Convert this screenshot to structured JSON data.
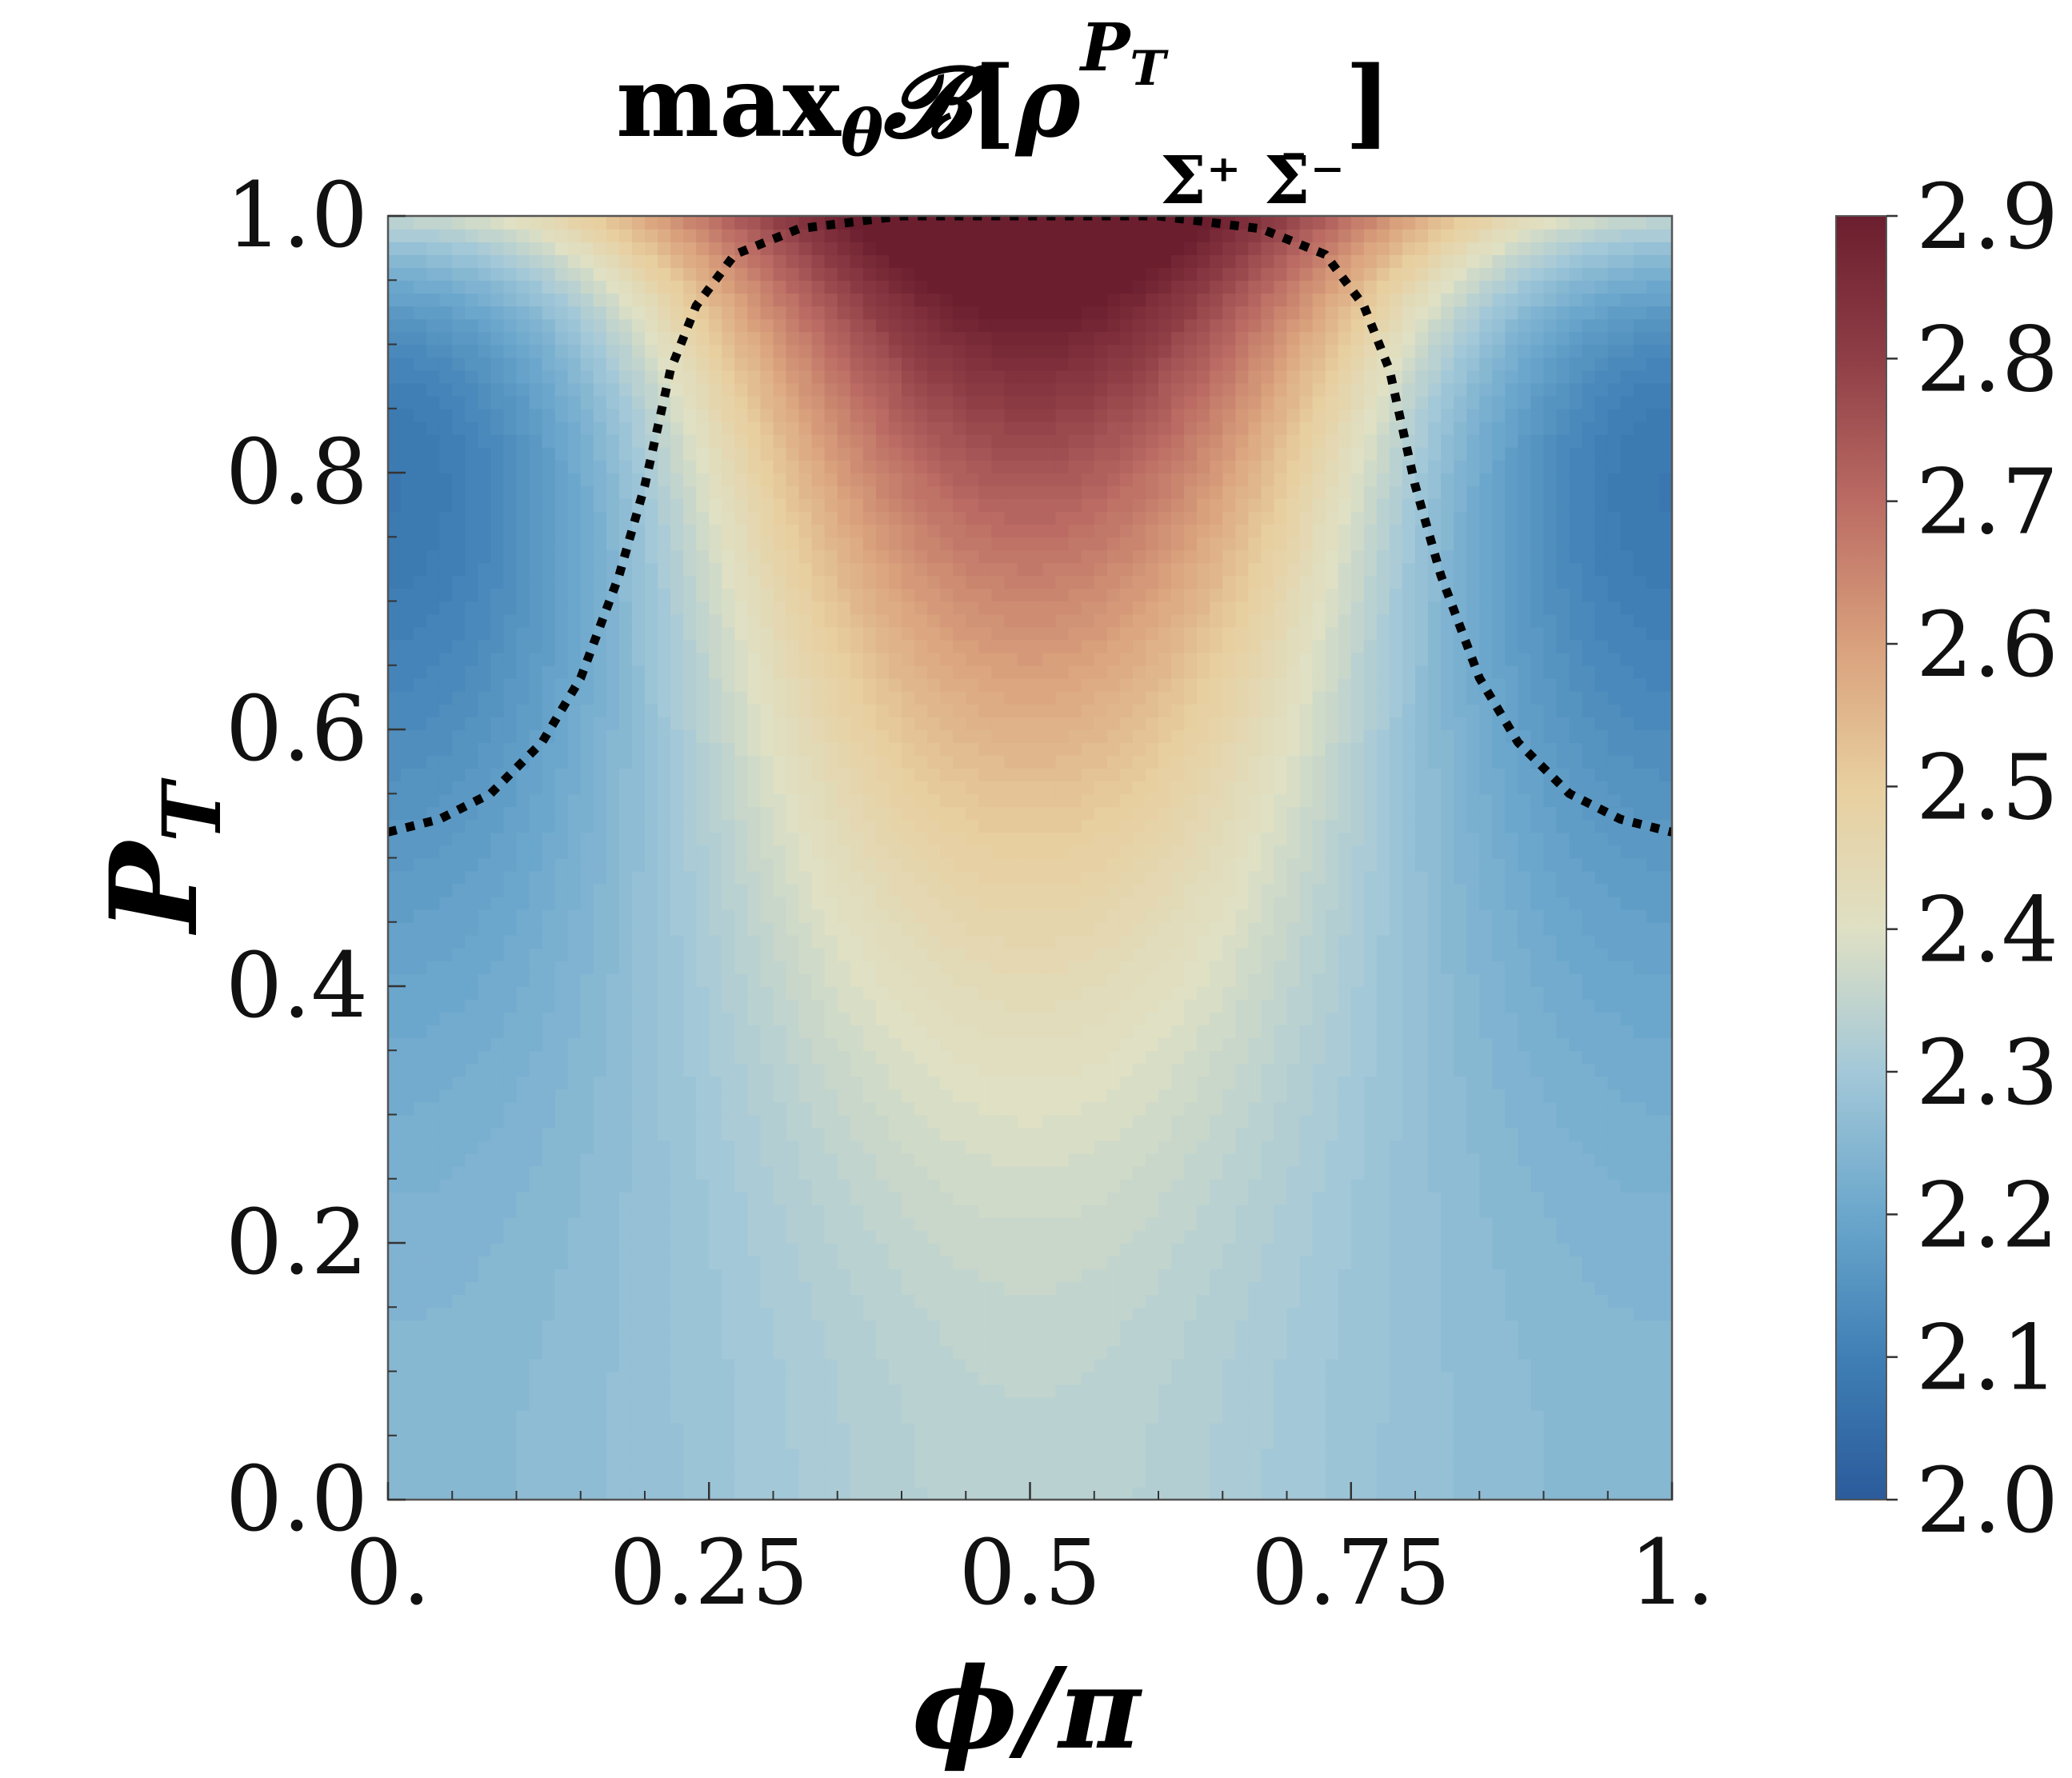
{
  "chart_data": {
    "type": "heatmap",
    "title": {
      "prefix": "max",
      "prefix_sub": "θ",
      "symbol": "𝓑",
      "open": "[",
      "rho": "ρ",
      "superscript": "P",
      "superscript_sub": "T",
      "subscript": "Σ⁺ Σ̄⁻",
      "close": "]"
    },
    "xlabel": "ϕ/π",
    "ylabel": {
      "main": "P",
      "sub": "T"
    },
    "x_range": [
      0,
      1
    ],
    "y_range": [
      0,
      1
    ],
    "x_ticks": [
      {
        "value": 0,
        "label": "0."
      },
      {
        "value": 0.25,
        "label": "0.25"
      },
      {
        "value": 0.5,
        "label": "0.5"
      },
      {
        "value": 0.75,
        "label": "0.75"
      },
      {
        "value": 1,
        "label": "1."
      }
    ],
    "y_ticks": [
      {
        "value": 0,
        "label": "0.0"
      },
      {
        "value": 0.2,
        "label": "0.2"
      },
      {
        "value": 0.4,
        "label": "0.4"
      },
      {
        "value": 0.6,
        "label": "0.6"
      },
      {
        "value": 0.8,
        "label": "0.8"
      },
      {
        "value": 1,
        "label": "1.0"
      }
    ],
    "colorbar": {
      "range": [
        2.0,
        2.9
      ],
      "ticks": [
        {
          "value": 2.0,
          "label": "2.0"
        },
        {
          "value": 2.1,
          "label": "2.1"
        },
        {
          "value": 2.2,
          "label": "2.2"
        },
        {
          "value": 2.3,
          "label": "2.3"
        },
        {
          "value": 2.4,
          "label": "2.4"
        },
        {
          "value": 2.5,
          "label": "2.5"
        },
        {
          "value": 2.6,
          "label": "2.6"
        },
        {
          "value": 2.7,
          "label": "2.7"
        },
        {
          "value": 2.8,
          "label": "2.8"
        },
        {
          "value": 2.9,
          "label": "2.9"
        }
      ],
      "colors": [
        "#2b5b9b",
        "#3f7fb5",
        "#6ba7cc",
        "#a3c8d8",
        "#dfe0c4",
        "#e8cf9f",
        "#d9a07c",
        "#bb6b63",
        "#8f3e46",
        "#6b1e2e"
      ]
    },
    "contour_level_2sqrt2": {
      "value": 2.828,
      "style": "dotted",
      "color": "#000000",
      "points": [
        [
          0.0,
          0.52
        ],
        [
          0.04,
          0.53
        ],
        [
          0.08,
          0.55
        ],
        [
          0.12,
          0.59
        ],
        [
          0.15,
          0.64
        ],
        [
          0.18,
          0.72
        ],
        [
          0.2,
          0.79
        ],
        [
          0.22,
          0.88
        ],
        [
          0.24,
          0.93
        ],
        [
          0.27,
          0.97
        ],
        [
          0.32,
          0.99
        ],
        [
          0.4,
          1.0
        ],
        [
          0.5,
          1.0
        ],
        [
          0.6,
          1.0
        ],
        [
          0.68,
          0.99
        ],
        [
          0.73,
          0.97
        ],
        [
          0.76,
          0.93
        ],
        [
          0.78,
          0.88
        ],
        [
          0.8,
          0.79
        ],
        [
          0.82,
          0.72
        ],
        [
          0.85,
          0.64
        ],
        [
          0.88,
          0.59
        ],
        [
          0.92,
          0.55
        ],
        [
          0.96,
          0.53
        ],
        [
          1.0,
          0.52
        ]
      ]
    }
  }
}
